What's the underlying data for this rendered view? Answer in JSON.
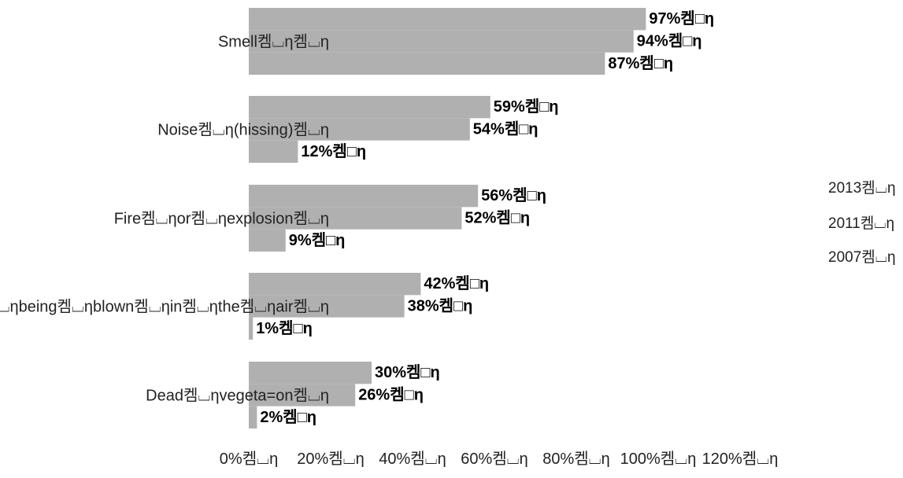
{
  "chart_data": {
    "type": "bar",
    "orientation": "horizontal",
    "categories": [
      "Smell켐⌴η켐⌴η",
      "Noise켐⌴η(hissing)켐⌴η",
      "Fire켐⌴ηor켐⌴ηexplosion켐⌴η",
      "Dirt켐⌴ηbeing켐⌴ηblown켐⌴ηin켐⌴ηthe켐⌴ηair켐⌴η",
      "Dead켐⌴ηvegeta=on켐⌴η"
    ],
    "series": [
      {
        "name": "2013켐⌴η",
        "values": [
          97,
          59,
          56,
          42,
          30
        ],
        "labels": [
          "97%켐□η",
          "59%켐□η",
          "56%켐□η",
          "42%켐□η",
          "30%켐□η"
        ]
      },
      {
        "name": "2011켐⌴η",
        "values": [
          94,
          54,
          52,
          38,
          26
        ],
        "labels": [
          "94%켐□η",
          "54%켐□η",
          "52%켐□η",
          "38%켐□η",
          "26%켐□η"
        ]
      },
      {
        "name": "2007켐⌴η",
        "values": [
          87,
          12,
          9,
          1,
          2
        ],
        "labels": [
          "87%켐□η",
          "12%켐□η",
          "9%켐□η",
          "1%켐□η",
          "2%켐□η"
        ]
      }
    ],
    "x_ticks": [
      0,
      20,
      40,
      60,
      80,
      100,
      120
    ],
    "x_tick_labels": [
      "0%켐⌴η",
      "20%켐⌴η",
      "40%켐⌴η",
      "60%켐⌴η",
      "80%켐⌴η",
      "100%켐⌴η",
      "120%켐⌴η"
    ],
    "xlim": [
      0,
      120
    ],
    "title": "",
    "xlabel": "",
    "ylabel": "",
    "grid": false,
    "legend_position": "right",
    "colors": {
      "bar": "#b0b0b0",
      "text": "#222222",
      "label": "#000000"
    }
  }
}
